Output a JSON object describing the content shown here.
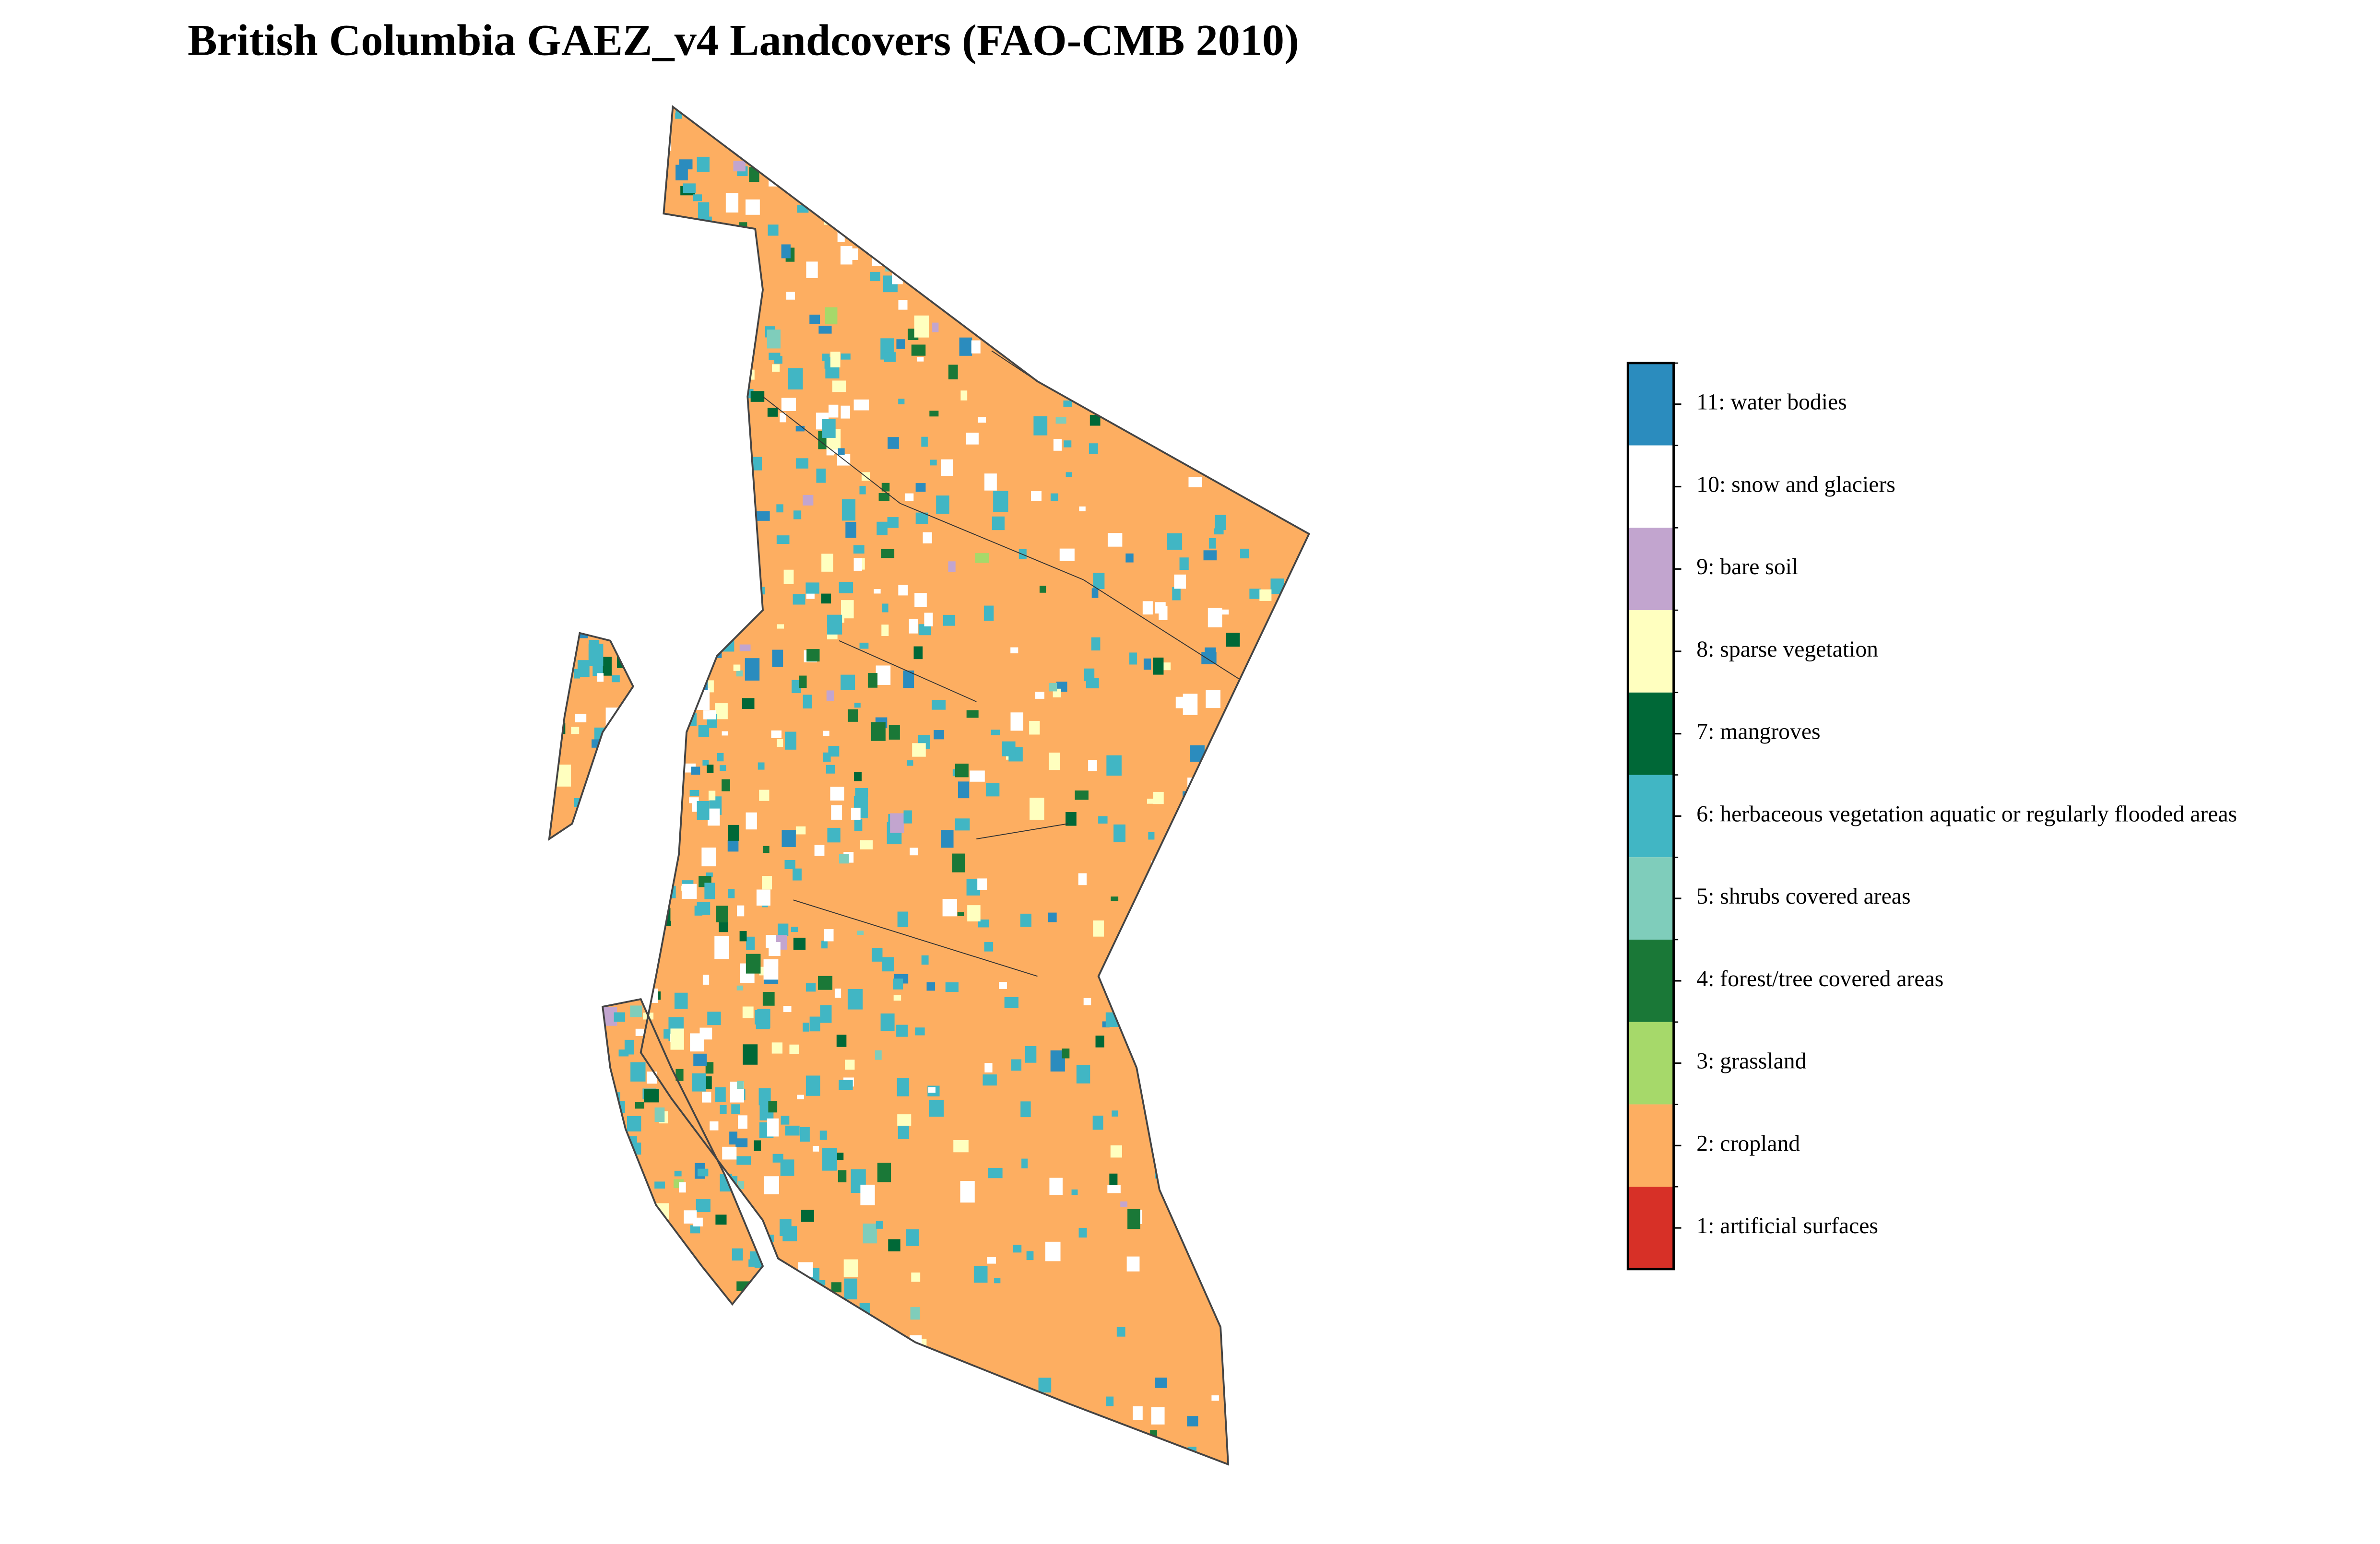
{
  "title": "British Columbia GAEZ_v4 Landcovers (FAO-CMB 2010)",
  "legend": {
    "items": [
      {
        "label": "11: water bodies",
        "color": "#2b8cbe"
      },
      {
        "label": "10: snow and glaciers",
        "color": "#ffffff"
      },
      {
        "label": "9: bare soil",
        "color": "#c2a5cf"
      },
      {
        "label": "8: sparse vegetation",
        "color": "#ffffbf"
      },
      {
        "label": "7: mangroves",
        "color": "#006837"
      },
      {
        "label": "6: herbaceous vegetation aquatic or regularly flooded areas",
        "color": "#41b6c4"
      },
      {
        "label": "5: shrubs covered areas",
        "color": "#7fcdbb"
      },
      {
        "label": "4: forest/tree covered areas",
        "color": "#1a7837"
      },
      {
        "label": "3: grassland",
        "color": "#a6d96a"
      },
      {
        "label": "2: cropland",
        "color": "#fdae61"
      },
      {
        "label": "1: artificial surfaces",
        "color": "#d73027"
      }
    ]
  }
}
